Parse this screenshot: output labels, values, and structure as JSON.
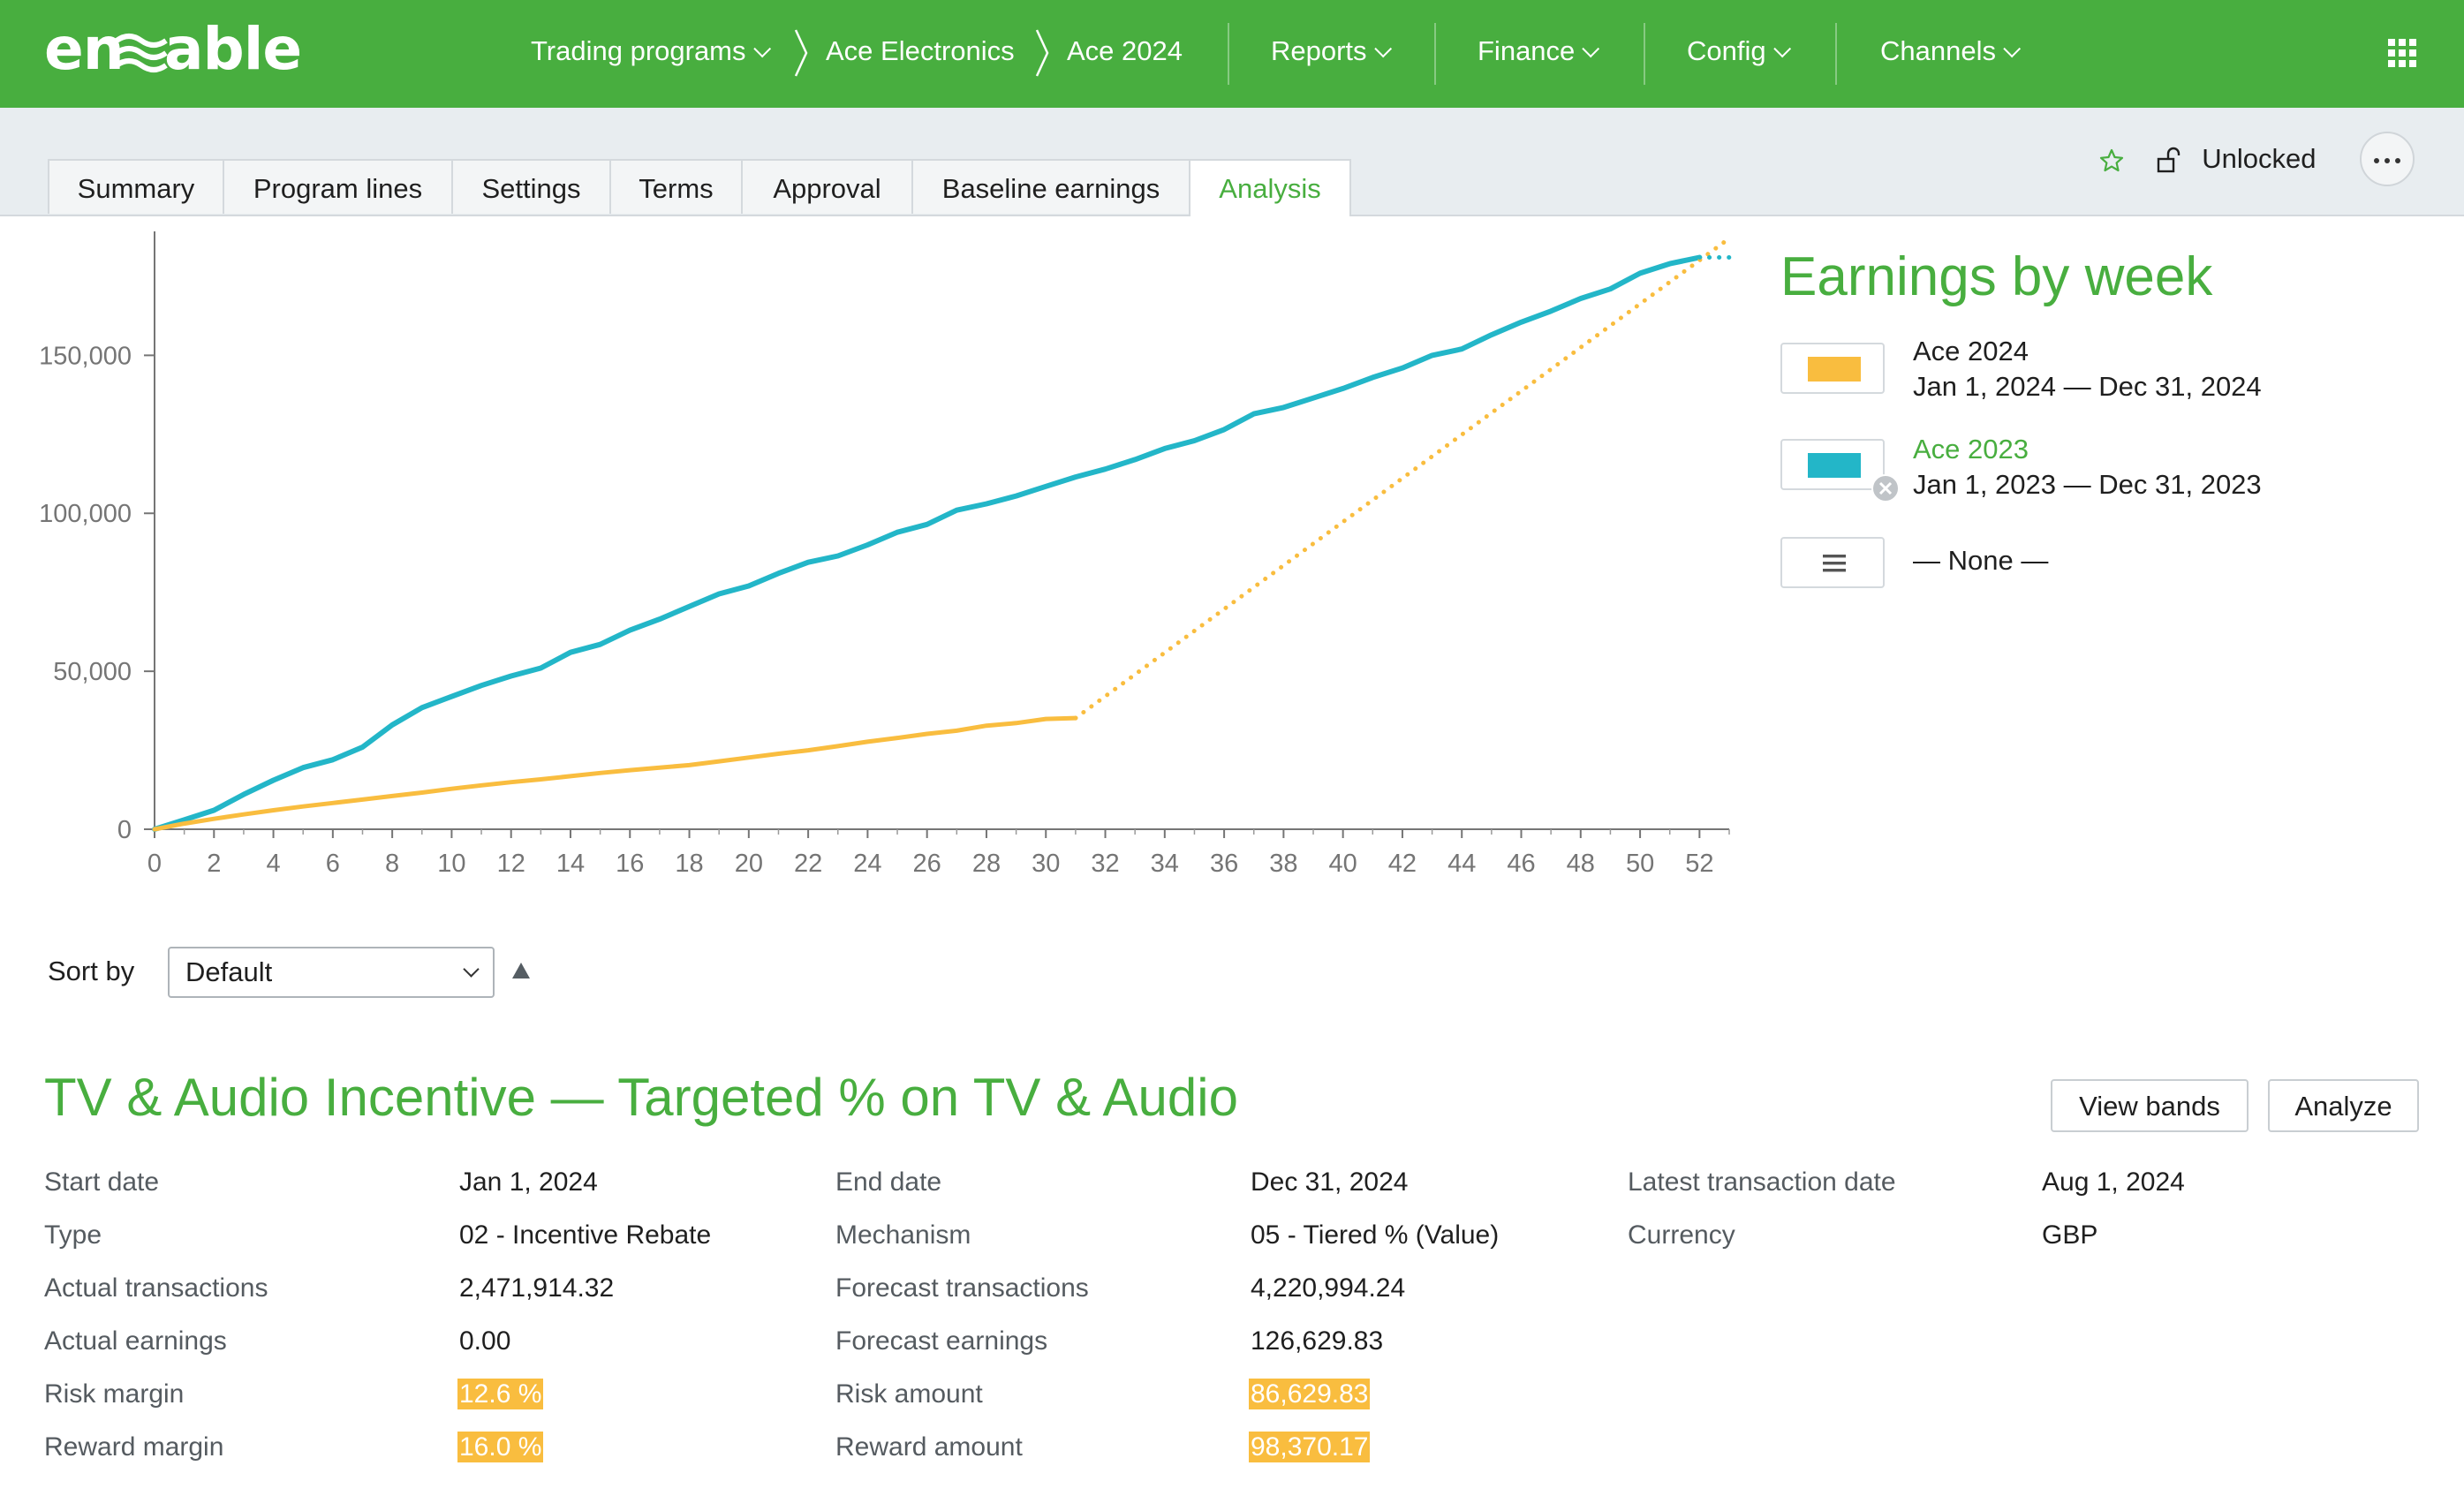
{
  "app": {
    "logo": "enable"
  },
  "nav": {
    "breadcrumb": [
      "Trading programs",
      "Ace Electronics",
      "Ace 2024"
    ],
    "menus": [
      "Reports",
      "Finance",
      "Config",
      "Channels"
    ]
  },
  "tabs": [
    "Summary",
    "Program lines",
    "Settings",
    "Terms",
    "Approval",
    "Baseline earnings",
    "Analysis"
  ],
  "active_tab": "Analysis",
  "status": {
    "lock_label": "Unlocked"
  },
  "legend": {
    "title": "Earnings by week",
    "items": [
      {
        "name": "Ace 2024",
        "dates": "Jan 1, 2024 — Dec 31, 2024",
        "color": "#f9bd3f"
      },
      {
        "name": "Ace 2023",
        "dates": "Jan 1, 2023 — Dec 31, 2023",
        "color": "#23b6c8"
      },
      {
        "name": "— None —"
      }
    ]
  },
  "chart_data": {
    "type": "line",
    "title": "Earnings by week",
    "xlim": [
      0,
      53
    ],
    "ylim": [
      0,
      187000
    ],
    "x_ticks": [
      0,
      2,
      4,
      6,
      8,
      10,
      12,
      14,
      16,
      18,
      20,
      22,
      24,
      26,
      28,
      30,
      32,
      34,
      36,
      38,
      40,
      42,
      44,
      46,
      48,
      50,
      52
    ],
    "y_ticks": [
      0,
      50000,
      100000,
      150000
    ],
    "y_tick_labels": [
      "0",
      "50,000",
      "100,000",
      "150,000"
    ],
    "grid": false,
    "series": [
      {
        "name": "Ace 2023",
        "color": "#23b6c8",
        "x": [
          0,
          1,
          2,
          3,
          4,
          5,
          6,
          7,
          8,
          9,
          10,
          11,
          12,
          13,
          14,
          15,
          16,
          17,
          18,
          19,
          20,
          21,
          22,
          23,
          24,
          25,
          26,
          27,
          28,
          29,
          30,
          31,
          32,
          33,
          34,
          35,
          36,
          37,
          38,
          39,
          40,
          41,
          42,
          43,
          44,
          45,
          46,
          47,
          48,
          49,
          50,
          51,
          52
        ],
        "values": [
          0,
          3000,
          6000,
          11000,
          15500,
          19500,
          22000,
          26000,
          33000,
          38500,
          42000,
          45500,
          48500,
          51000,
          56000,
          58500,
          63000,
          66500,
          70500,
          74500,
          77000,
          81000,
          84500,
          86500,
          90000,
          94000,
          96500,
          101000,
          103000,
          105500,
          108500,
          111500,
          114000,
          117000,
          120500,
          123000,
          126500,
          131500,
          133500,
          136500,
          139500,
          143000,
          146000,
          150000,
          152000,
          156500,
          160500,
          164000,
          168000,
          171000,
          176000,
          179000,
          181000
        ]
      },
      {
        "name": "Ace 2024",
        "color": "#f9bd3f",
        "x": [
          0,
          1,
          2,
          3,
          4,
          5,
          6,
          7,
          8,
          9,
          10,
          11,
          12,
          13,
          14,
          15,
          16,
          17,
          18,
          19,
          20,
          21,
          22,
          23,
          24,
          25,
          26,
          27,
          28,
          29,
          30,
          31
        ],
        "values": [
          0,
          1800,
          3300,
          4700,
          6000,
          7200,
          8300,
          9400,
          10500,
          11600,
          12800,
          13900,
          14900,
          15800,
          16800,
          17800,
          18700,
          19500,
          20300,
          21500,
          22700,
          23900,
          25000,
          26300,
          27700,
          28900,
          30200,
          31200,
          32800,
          33600,
          34900,
          35200
        ]
      },
      {
        "name": "Ace 2024 forecast",
        "color": "#f9bd3f",
        "style": "dotted",
        "x": [
          31,
          53
        ],
        "values": [
          35200,
          187000
        ]
      },
      {
        "name": "Ace 2023 end",
        "color": "#23b6c8",
        "style": "dotted",
        "x": [
          52,
          53
        ],
        "values": [
          181000,
          181000
        ]
      }
    ]
  },
  "sort": {
    "label": "Sort by",
    "value": "Default"
  },
  "program": {
    "title": "TV & Audio Incentive — Targeted % on TV & Audio",
    "buttons": {
      "view_bands": "View bands",
      "analyze": "Analyze"
    },
    "fields": {
      "start_date": {
        "label": "Start date",
        "value": "Jan 1, 2024"
      },
      "type": {
        "label": "Type",
        "value": "02 - Incentive Rebate"
      },
      "actual_transactions": {
        "label": "Actual transactions",
        "value": "2,471,914.32"
      },
      "actual_earnings": {
        "label": "Actual earnings",
        "value": "0.00"
      },
      "risk_margin": {
        "label": "Risk margin",
        "value": "12.6 %"
      },
      "reward_margin": {
        "label": "Reward margin",
        "value": "16.0 %"
      },
      "end_date": {
        "label": "End date",
        "value": "Dec 31, 2024"
      },
      "mechanism": {
        "label": "Mechanism",
        "value": "05 - Tiered % (Value)"
      },
      "forecast_transactions": {
        "label": "Forecast transactions",
        "value": "4,220,994.24"
      },
      "forecast_earnings": {
        "label": "Forecast earnings",
        "value": "126,629.83"
      },
      "risk_amount": {
        "label": "Risk amount",
        "value": "86,629.83"
      },
      "reward_amount": {
        "label": "Reward amount",
        "value": "98,370.17"
      },
      "latest_transaction_date": {
        "label": "Latest transaction date",
        "value": "Aug 1, 2024"
      },
      "currency": {
        "label": "Currency",
        "value": "GBP"
      }
    }
  }
}
